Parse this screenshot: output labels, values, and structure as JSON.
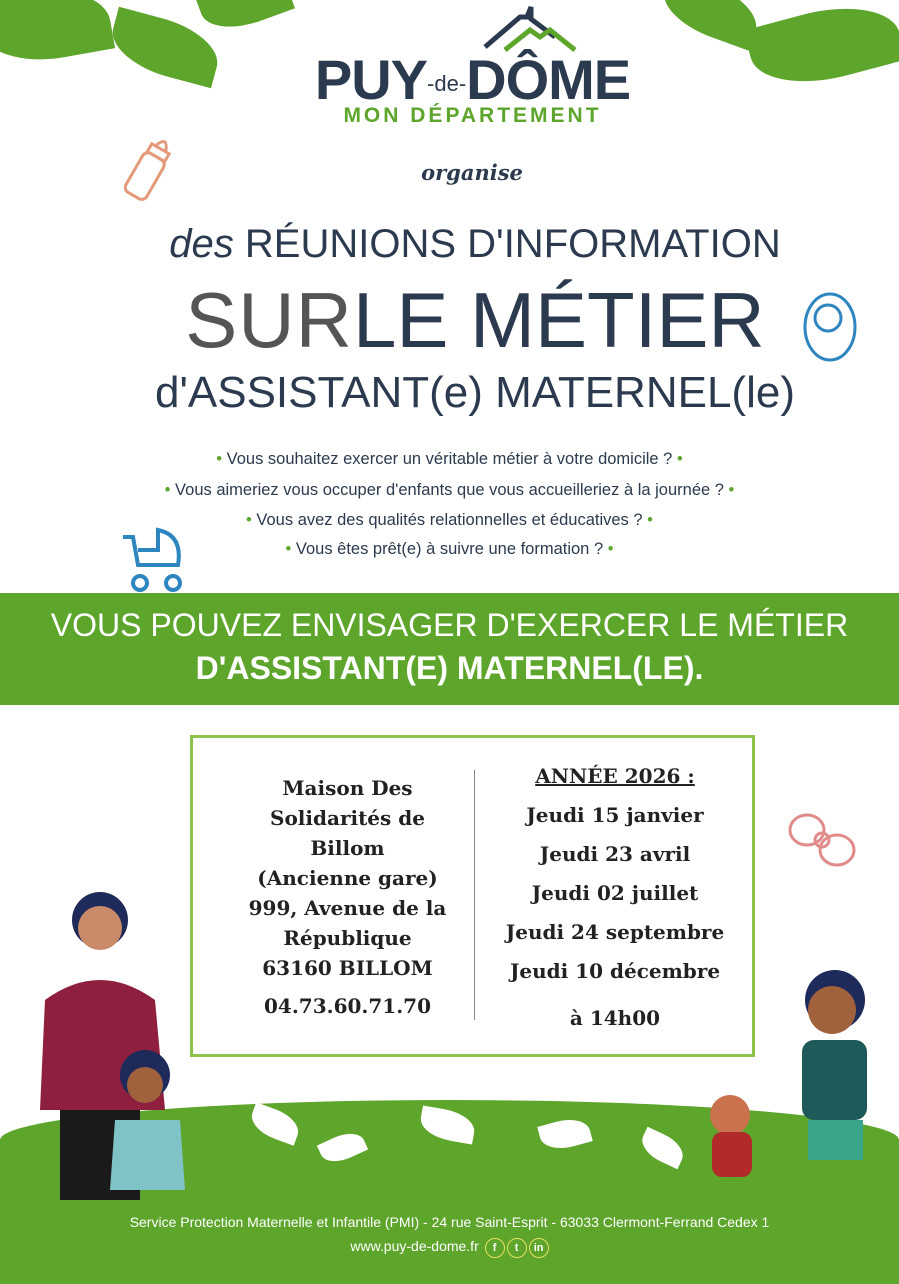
{
  "logo": {
    "name_part1": "PUY",
    "name_part2": "-de-",
    "name_part3": "DÔME",
    "tagline": "MON DÉPARTEMENT"
  },
  "intro": "organise",
  "title": {
    "line1_italic": "des",
    "line1_rest": "RÉUNIONS D'INFORMATION",
    "line2_thin": "SUR",
    "line2_bold": "LE MÉTIER",
    "line3": "d'ASSISTANT(e) MATERNEL(le)"
  },
  "questions": [
    "Vous souhaitez exercer un véritable métier à votre domicile ?",
    "Vous aimeriez vous occuper d'enfants que vous accueilleriez à la journée ?",
    "Vous avez des qualités relationnelles et éducatives ?",
    "Vous êtes prêt(e) à suivre une formation ?"
  ],
  "banner": {
    "line1": "VOUS POUVEZ ENVISAGER D'EXERCER LE MÉTIER",
    "line2": "D'ASSISTANT(E) MATERNEL(LE)."
  },
  "location": {
    "lines": [
      "Maison Des",
      "Solidarités de",
      "Billom",
      "(Ancienne gare)",
      "999, Avenue de la",
      "République",
      "63160 BILLOM"
    ],
    "phone": "04.73.60.71.70"
  },
  "schedule": {
    "heading": "ANNÉE 2026 :",
    "dates": [
      "Jeudi 15 janvier",
      "Jeudi 23 avril",
      "Jeudi 02 juillet",
      "Jeudi 24 septembre",
      "Jeudi 10 décembre"
    ],
    "time": "à 14h00"
  },
  "footer": {
    "address": "Service Protection Maternelle et Infantile (PMI) - 24 rue Saint-Esprit - 63033 Clermont-Ferrand Cedex 1",
    "website": "www.puy-de-dome.fr",
    "social": [
      "f",
      "t",
      "in"
    ]
  },
  "colors": {
    "green": "#5ea52c",
    "navy": "#2b3a4e"
  },
  "icons": [
    "baby-bottle-icon",
    "baby-icon",
    "stroller-icon",
    "pacifier-icon",
    "facebook-icon",
    "twitter-icon",
    "linkedin-icon"
  ]
}
